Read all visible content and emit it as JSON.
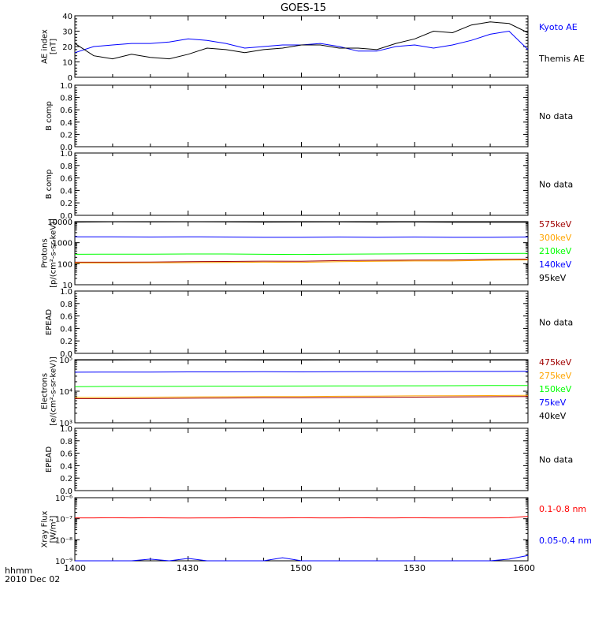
{
  "title": "GOES-15",
  "x_axis": {
    "tick_labels": [
      "1400",
      "1430",
      "1500",
      "1530",
      "1600"
    ],
    "label_line1": "hhmm",
    "label_line2": "2010 Dec 02"
  },
  "colors": {
    "black": "#000000",
    "blue": "#0000ff",
    "red": "#ff0000",
    "orange": "#ffa500",
    "green": "#00ff00",
    "darkred": "#a00000"
  },
  "chart_data": [
    {
      "id": "ae",
      "type": "line",
      "ylabel": [
        "AE index",
        "[nT]"
      ],
      "ylim": [
        0,
        40
      ],
      "yticks": [
        0,
        10,
        20,
        30,
        40
      ],
      "x": [
        1400,
        1405,
        1410,
        1415,
        1420,
        1425,
        1430,
        1435,
        1440,
        1445,
        1450,
        1455,
        1500,
        1505,
        1510,
        1515,
        1520,
        1525,
        1530,
        1535,
        1540,
        1545,
        1550,
        1555,
        1600
      ],
      "series": [
        {
          "name": "Kyoto AE",
          "color": "blue",
          "values": [
            16,
            20,
            21,
            22,
            22,
            23,
            25,
            24,
            22,
            19,
            20,
            21,
            21,
            22,
            20,
            17,
            17,
            20,
            21,
            19,
            21,
            24,
            28,
            30,
            18
          ]
        },
        {
          "name": "Themis AE",
          "color": "black",
          "values": [
            22,
            14,
            12,
            15,
            13,
            12,
            15,
            19,
            18,
            16,
            18,
            19,
            21,
            21,
            19,
            19,
            18,
            22,
            25,
            30,
            29,
            34,
            36,
            35,
            29
          ]
        }
      ],
      "legend": [
        "Kyoto AE",
        "Themis AE"
      ]
    },
    {
      "id": "bcomp1",
      "type": "line",
      "ylabel": [
        "B comp"
      ],
      "ylim": [
        0,
        1
      ],
      "yticks": [
        "0.0",
        "0.2",
        "0.4",
        "0.6",
        "0.8",
        "1.0"
      ],
      "series": [],
      "note": "No data"
    },
    {
      "id": "bcomp2",
      "type": "line",
      "ylabel": [
        "B comp"
      ],
      "ylim": [
        0,
        1
      ],
      "yticks": [
        "0.0",
        "0.2",
        "0.4",
        "0.6",
        "0.8",
        "1.0"
      ],
      "series": [],
      "note": "No data"
    },
    {
      "id": "protons",
      "type": "line",
      "scale": "log",
      "ylabel": [
        "Protons",
        "[p/(cm²-s-sr-keV)]"
      ],
      "ylim": [
        10,
        10000
      ],
      "yticks": [
        "10",
        "100",
        "1000",
        "10000"
      ],
      "x": [
        1400,
        1410,
        1420,
        1430,
        1440,
        1450,
        1500,
        1510,
        1520,
        1530,
        1540,
        1550,
        1600
      ],
      "series": [
        {
          "name": "575keV",
          "color": "darkred",
          "values": [
            118,
            118,
            120,
            125,
            128,
            132,
            130,
            140,
            145,
            148,
            150,
            160,
            165
          ]
        },
        {
          "name": "300keV",
          "color": "orange",
          "values": [
            108,
            108,
            110,
            112,
            115,
            118,
            116,
            125,
            130,
            135,
            135,
            145,
            150
          ]
        },
        {
          "name": "210keV",
          "color": "green",
          "values": [
            280,
            285,
            282,
            290,
            290,
            280,
            275,
            285,
            290,
            295,
            300,
            305,
            310
          ]
        },
        {
          "name": "140keV",
          "color": "blue",
          "values": [
            1900,
            1900,
            1850,
            1900,
            1850,
            1800,
            1800,
            1850,
            1800,
            1850,
            1800,
            1800,
            1850
          ]
        },
        {
          "name": "95keV",
          "color": "black",
          "values": [
            9500,
            9800,
            9700,
            9800,
            9700,
            9500,
            9600,
            9700,
            9500,
            9600,
            9400,
            9300,
            9400
          ]
        }
      ],
      "legend": [
        "575keV",
        "300keV",
        "210keV",
        "140keV",
        "95keV"
      ]
    },
    {
      "id": "epead1",
      "type": "line",
      "ylabel": [
        "EPEAD"
      ],
      "ylim": [
        0,
        1
      ],
      "yticks": [
        "0.0",
        "0.2",
        "0.4",
        "0.6",
        "0.8",
        "1.0"
      ],
      "series": [],
      "note": "No data"
    },
    {
      "id": "electrons",
      "type": "line",
      "scale": "log",
      "ylabel": [
        "Electrons",
        "[e/(cm²-s-sr-keV)]"
      ],
      "ylim": [
        1000,
        100000
      ],
      "yticks": [
        "10³",
        "10⁴",
        "10⁵"
      ],
      "x": [
        1400,
        1410,
        1420,
        1430,
        1440,
        1450,
        1500,
        1510,
        1520,
        1530,
        1540,
        1550,
        1600
      ],
      "series": [
        {
          "name": "475keV",
          "color": "darkred",
          "values": [
            5800,
            5800,
            5900,
            6000,
            6100,
            6200,
            6200,
            6300,
            6400,
            6500,
            6600,
            6700,
            6800
          ]
        },
        {
          "name": "275keV",
          "color": "orange",
          "values": [
            6400,
            6400,
            6500,
            6600,
            6700,
            6800,
            6800,
            6900,
            7000,
            7100,
            7200,
            7300,
            7400
          ]
        },
        {
          "name": "150keV",
          "color": "green",
          "values": [
            14000,
            14200,
            14200,
            14400,
            14500,
            14500,
            14600,
            14700,
            14800,
            14900,
            15000,
            15100,
            15200
          ]
        },
        {
          "name": "75keV",
          "color": "blue",
          "values": [
            40000,
            40500,
            40500,
            41000,
            41000,
            41500,
            41000,
            41500,
            42000,
            42000,
            42500,
            42500,
            43000
          ]
        },
        {
          "name": "40keV",
          "color": "black",
          "values": [
            97000,
            97000,
            98000,
            98000,
            98000,
            97000,
            97000,
            98000,
            98000,
            98000,
            97000,
            97000,
            97000
          ]
        }
      ],
      "legend": [
        "475keV",
        "275keV",
        "150keV",
        "75keV",
        "40keV"
      ]
    },
    {
      "id": "epead2",
      "type": "line",
      "ylabel": [
        "EPEAD"
      ],
      "ylim": [
        0,
        1
      ],
      "yticks": [
        "0.0",
        "0.2",
        "0.4",
        "0.6",
        "0.8",
        "1.0"
      ],
      "series": [],
      "note": "No data"
    },
    {
      "id": "xray",
      "type": "line",
      "scale": "log",
      "ylabel": [
        "Xray Flux",
        "[W/m²]"
      ],
      "ylim": [
        1e-09,
        1e-06
      ],
      "yticks": [
        "10⁻⁹",
        "10⁻⁸",
        "10⁻⁷",
        "10⁻⁶"
      ],
      "x": [
        1400,
        1405,
        1410,
        1415,
        1420,
        1425,
        1430,
        1435,
        1440,
        1445,
        1450,
        1455,
        1500,
        1505,
        1510,
        1515,
        1520,
        1525,
        1530,
        1535,
        1540,
        1545,
        1550,
        1555,
        1600
      ],
      "series": [
        {
          "name": "0.1-0.8 nm",
          "color": "red",
          "values": [
            1.1e-07,
            1.1e-07,
            1.12e-07,
            1.1e-07,
            1.12e-07,
            1.1e-07,
            1.08e-07,
            1.1e-07,
            1.1e-07,
            1.12e-07,
            1.1e-07,
            1.1e-07,
            1.12e-07,
            1.1e-07,
            1.1e-07,
            1.12e-07,
            1.1e-07,
            1.1e-07,
            1.12e-07,
            1.1e-07,
            1.1e-07,
            1.1e-07,
            1.1e-07,
            1.12e-07,
            1.3e-07
          ]
        },
        {
          "name": "0.05-0.4 nm",
          "color": "blue",
          "values": [
            1e-09,
            1e-09,
            1e-09,
            1e-09,
            1.2e-09,
            1e-09,
            1.3e-09,
            1e-09,
            1e-09,
            1e-09,
            1e-09,
            1.4e-09,
            1e-09,
            1e-09,
            1e-09,
            1e-09,
            1e-09,
            1e-09,
            1e-09,
            1e-09,
            1e-09,
            1e-09,
            1e-09,
            1.2e-09,
            1.8e-09
          ]
        }
      ],
      "legend": [
        "0.1-0.8 nm",
        "0.05-0.4 nm"
      ]
    }
  ]
}
